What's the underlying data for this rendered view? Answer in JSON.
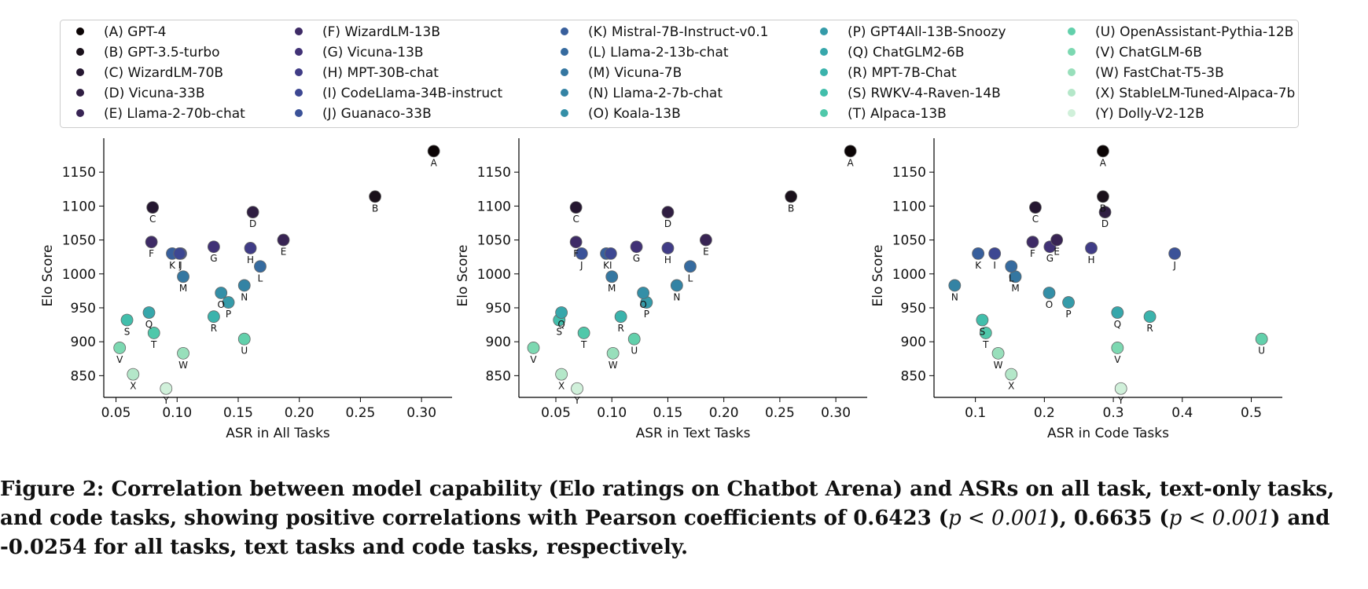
{
  "caption": {
    "prefix": "Figure 2: Correlation between model capability (Elo ratings on Chatbot Arena) and ASRs on all task, text-only tasks, and code tasks, showing positive correlations with Pearson coefficients of 0.6423 (",
    "p1": "p < 0.001",
    "mid1": "), 0.6635 (",
    "p2": "p < 0.001",
    "suffix": ") and -0.0254 for all tasks, text tasks and code tasks, respectively."
  },
  "chart_data": [
    {
      "type": "scatter",
      "title": "",
      "xlabel": "ASR in All Tasks",
      "ylabel": "Elo Score",
      "xlim": [
        0.04,
        0.325
      ],
      "ylim": [
        818,
        1200
      ],
      "xticks": [
        0.05,
        0.1,
        0.15,
        0.2,
        0.25,
        0.3
      ],
      "xtick_labels": [
        "0.05",
        "0.10",
        "0.15",
        "0.20",
        "0.25",
        "0.30"
      ],
      "yticks": [
        850,
        900,
        950,
        1000,
        1050,
        1100,
        1150
      ],
      "grid": false,
      "points": [
        {
          "label": "A",
          "x": 0.31,
          "y": 1181
        },
        {
          "label": "B",
          "x": 0.262,
          "y": 1114
        },
        {
          "label": "C",
          "x": 0.08,
          "y": 1098
        },
        {
          "label": "D",
          "x": 0.162,
          "y": 1091
        },
        {
          "label": "E",
          "x": 0.187,
          "y": 1050
        },
        {
          "label": "F",
          "x": 0.079,
          "y": 1047
        },
        {
          "label": "G",
          "x": 0.13,
          "y": 1040
        },
        {
          "label": "H",
          "x": 0.16,
          "y": 1038
        },
        {
          "label": "I",
          "x": 0.102,
          "y": 1030
        },
        {
          "label": "J",
          "x": 0.103,
          "y": 1030
        },
        {
          "label": "K",
          "x": 0.096,
          "y": 1030
        },
        {
          "label": "L",
          "x": 0.168,
          "y": 1011
        },
        {
          "label": "M",
          "x": 0.105,
          "y": 996
        },
        {
          "label": "N",
          "x": 0.155,
          "y": 983
        },
        {
          "label": "O",
          "x": 0.136,
          "y": 972
        },
        {
          "label": "P",
          "x": 0.142,
          "y": 958
        },
        {
          "label": "Q",
          "x": 0.077,
          "y": 943
        },
        {
          "label": "R",
          "x": 0.13,
          "y": 937
        },
        {
          "label": "S",
          "x": 0.059,
          "y": 932
        },
        {
          "label": "T",
          "x": 0.081,
          "y": 913
        },
        {
          "label": "U",
          "x": 0.155,
          "y": 904
        },
        {
          "label": "V",
          "x": 0.053,
          "y": 891
        },
        {
          "label": "W",
          "x": 0.105,
          "y": 883
        },
        {
          "label": "X",
          "x": 0.064,
          "y": 852
        },
        {
          "label": "Y",
          "x": 0.091,
          "y": 831
        }
      ]
    },
    {
      "type": "scatter",
      "title": "",
      "xlabel": "ASR in Text Tasks",
      "ylabel": "Elo Score",
      "xlim": [
        0.017,
        0.328
      ],
      "ylim": [
        818,
        1200
      ],
      "xticks": [
        0.05,
        0.1,
        0.15,
        0.2,
        0.25,
        0.3
      ],
      "xtick_labels": [
        "0.05",
        "0.10",
        "0.15",
        "0.20",
        "0.25",
        "0.30"
      ],
      "yticks": [
        850,
        900,
        950,
        1000,
        1050,
        1100,
        1150
      ],
      "grid": false,
      "points": [
        {
          "label": "A",
          "x": 0.313,
          "y": 1181
        },
        {
          "label": "B",
          "x": 0.26,
          "y": 1114
        },
        {
          "label": "C",
          "x": 0.068,
          "y": 1098
        },
        {
          "label": "D",
          "x": 0.15,
          "y": 1091
        },
        {
          "label": "E",
          "x": 0.184,
          "y": 1050
        },
        {
          "label": "F",
          "x": 0.068,
          "y": 1047
        },
        {
          "label": "G",
          "x": 0.122,
          "y": 1040
        },
        {
          "label": "H",
          "x": 0.15,
          "y": 1038
        },
        {
          "label": "I",
          "x": 0.099,
          "y": 1030
        },
        {
          "label": "J",
          "x": 0.073,
          "y": 1030
        },
        {
          "label": "K",
          "x": 0.095,
          "y": 1030
        },
        {
          "label": "L",
          "x": 0.17,
          "y": 1011
        },
        {
          "label": "M",
          "x": 0.1,
          "y": 996
        },
        {
          "label": "N",
          "x": 0.158,
          "y": 983
        },
        {
          "label": "O",
          "x": 0.128,
          "y": 972
        },
        {
          "label": "P",
          "x": 0.131,
          "y": 958
        },
        {
          "label": "Q",
          "x": 0.055,
          "y": 943
        },
        {
          "label": "R",
          "x": 0.108,
          "y": 937
        },
        {
          "label": "S",
          "x": 0.053,
          "y": 932
        },
        {
          "label": "T",
          "x": 0.075,
          "y": 913
        },
        {
          "label": "U",
          "x": 0.12,
          "y": 904
        },
        {
          "label": "V",
          "x": 0.03,
          "y": 891
        },
        {
          "label": "W",
          "x": 0.101,
          "y": 883
        },
        {
          "label": "X",
          "x": 0.055,
          "y": 852
        },
        {
          "label": "Y",
          "x": 0.069,
          "y": 831
        }
      ]
    },
    {
      "type": "scatter",
      "title": "",
      "xlabel": "ASR in Code Tasks",
      "ylabel": "Elo Score",
      "xlim": [
        0.04,
        0.545
      ],
      "ylim": [
        818,
        1200
      ],
      "xticks": [
        0.1,
        0.2,
        0.3,
        0.4,
        0.5
      ],
      "xtick_labels": [
        "0.1",
        "0.2",
        "0.3",
        "0.4",
        "0.5"
      ],
      "yticks": [
        850,
        900,
        950,
        1000,
        1050,
        1100,
        1150
      ],
      "grid": false,
      "points": [
        {
          "label": "A",
          "x": 0.285,
          "y": 1181
        },
        {
          "label": "B",
          "x": 0.285,
          "y": 1114
        },
        {
          "label": "C",
          "x": 0.187,
          "y": 1098
        },
        {
          "label": "D",
          "x": 0.288,
          "y": 1091
        },
        {
          "label": "E",
          "x": 0.218,
          "y": 1050
        },
        {
          "label": "F",
          "x": 0.183,
          "y": 1047
        },
        {
          "label": "G",
          "x": 0.208,
          "y": 1040
        },
        {
          "label": "H",
          "x": 0.268,
          "y": 1038
        },
        {
          "label": "I",
          "x": 0.128,
          "y": 1030
        },
        {
          "label": "J",
          "x": 0.389,
          "y": 1030
        },
        {
          "label": "K",
          "x": 0.104,
          "y": 1030
        },
        {
          "label": "L",
          "x": 0.152,
          "y": 1011
        },
        {
          "label": "M",
          "x": 0.158,
          "y": 996
        },
        {
          "label": "N",
          "x": 0.07,
          "y": 983
        },
        {
          "label": "O",
          "x": 0.207,
          "y": 972
        },
        {
          "label": "P",
          "x": 0.235,
          "y": 958
        },
        {
          "label": "Q",
          "x": 0.306,
          "y": 943
        },
        {
          "label": "R",
          "x": 0.353,
          "y": 937
        },
        {
          "label": "S",
          "x": 0.11,
          "y": 932
        },
        {
          "label": "T",
          "x": 0.115,
          "y": 913
        },
        {
          "label": "U",
          "x": 0.515,
          "y": 904
        },
        {
          "label": "V",
          "x": 0.306,
          "y": 891
        },
        {
          "label": "W",
          "x": 0.133,
          "y": 883
        },
        {
          "label": "X",
          "x": 0.152,
          "y": 852
        },
        {
          "label": "Y",
          "x": 0.311,
          "y": 831
        }
      ]
    }
  ],
  "legend": {
    "placement": "top",
    "items": [
      {
        "label": "(A) GPT-4",
        "color": "#0b0405"
      },
      {
        "label": "(B) GPT-3.5-turbo",
        "color": "#1a111b"
      },
      {
        "label": "(C) WizardLM-70B",
        "color": "#251731"
      },
      {
        "label": "(D) Vicuna-33B",
        "color": "#2f1e42"
      },
      {
        "label": "(E) Llama-2-70b-chat",
        "color": "#382454"
      },
      {
        "label": "(F) WizardLM-13B",
        "color": "#3e2b66"
      },
      {
        "label": "(G) Vicuna-13B",
        "color": "#413276"
      },
      {
        "label": "(H) MPT-30B-chat",
        "color": "#403c86"
      },
      {
        "label": "(I) CodeLlama-34B-instruct",
        "color": "#3d4792"
      },
      {
        "label": "(J) Guanaco-33B",
        "color": "#3b5298"
      },
      {
        "label": "(K) Mistral-7B-Instruct-v0.1",
        "color": "#385f9c"
      },
      {
        "label": "(L) Llama-2-13b-chat",
        "color": "#366b9f"
      },
      {
        "label": "(M) Vicuna-7B",
        "color": "#3577a1"
      },
      {
        "label": "(N) Llama-2-7b-chat",
        "color": "#3483a4"
      },
      {
        "label": "(O) Koala-13B",
        "color": "#348fa7"
      },
      {
        "label": "(P) GPT4All-13B-Snoozy",
        "color": "#359ba9"
      },
      {
        "label": "(Q) ChatGLM2-6B",
        "color": "#37a7ab"
      },
      {
        "label": "(R) MPT-7B-Chat",
        "color": "#3bb3ac"
      },
      {
        "label": "(S) RWKV-4-Raven-14B",
        "color": "#42beab"
      },
      {
        "label": "(T) Alpaca-13B",
        "color": "#4fc8aa"
      },
      {
        "label": "(U) OpenAssistant-Pythia-12B",
        "color": "#62d0ab"
      },
      {
        "label": "(V) ChatGLM-6B",
        "color": "#7cd8b1"
      },
      {
        "label": "(W) FastChat-T5-3B",
        "color": "#98dfbb"
      },
      {
        "label": "(X) StableLM-Tuned-Alpaca-7b",
        "color": "#b4e7c9"
      },
      {
        "label": "(Y) Dolly-V2-12B",
        "color": "#d0f0da"
      }
    ]
  }
}
